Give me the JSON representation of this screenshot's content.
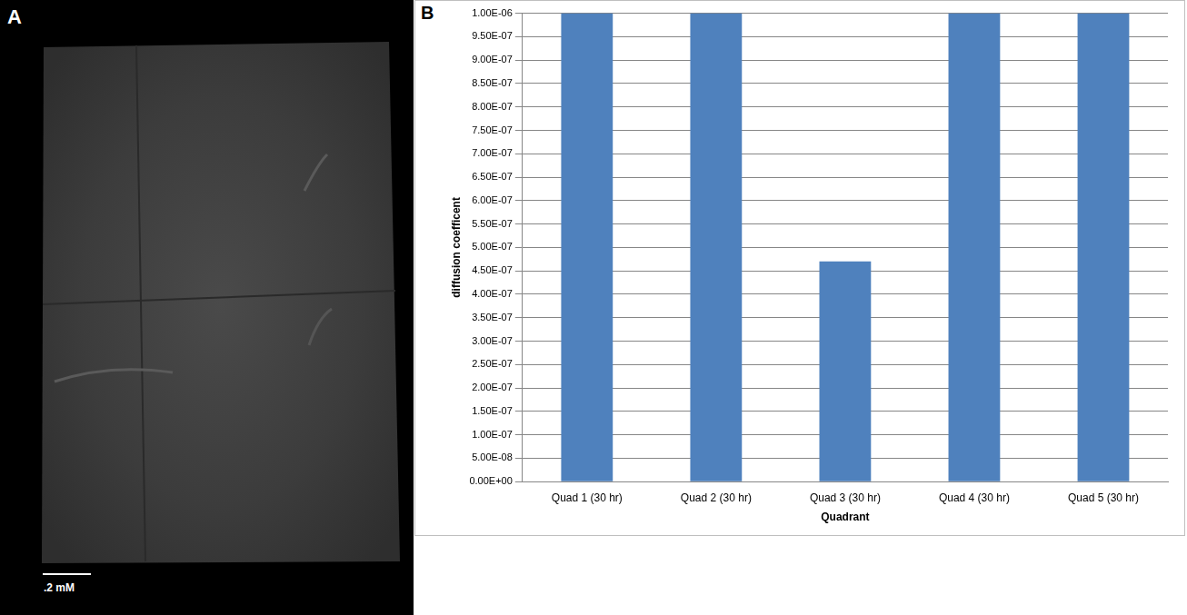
{
  "image_panel": {
    "label": "A",
    "scale_bar_label": ".2 mM"
  },
  "chart_panel_label": "B",
  "chart_data": {
    "type": "bar",
    "x_label": "Quadrant",
    "y_label": "diffusion coefficent",
    "categories": [
      "Quad 1 (30 hr)",
      "Quad 2 (30 hr)",
      "Quad 3 (30 hr)",
      "Quad 4 (30 hr)",
      "Quad 5 (30 hr)"
    ],
    "values": [
      1e-06,
      1e-06,
      4.7e-07,
      1e-06,
      1e-06
    ],
    "color": "#4f81bd",
    "ylim": [
      0,
      1e-06
    ],
    "yticks": [
      {
        "value": 0,
        "label": "0.00E+00"
      },
      {
        "value": 5e-08,
        "label": "5.00E-08"
      },
      {
        "value": 1e-07,
        "label": "1.00E-07"
      },
      {
        "value": 1.5e-07,
        "label": "1.50E-07"
      },
      {
        "value": 2e-07,
        "label": "2.00E-07"
      },
      {
        "value": 2.5e-07,
        "label": "2.50E-07"
      },
      {
        "value": 3e-07,
        "label": "3.00E-07"
      },
      {
        "value": 3.5e-07,
        "label": "3.50E-07"
      },
      {
        "value": 4e-07,
        "label": "4.00E-07"
      },
      {
        "value": 4.5e-07,
        "label": "4.50E-07"
      },
      {
        "value": 5e-07,
        "label": "5.00E-07"
      },
      {
        "value": 5.5e-07,
        "label": "5.50E-07"
      },
      {
        "value": 6e-07,
        "label": "6.00E-07"
      },
      {
        "value": 6.5e-07,
        "label": "6.50E-07"
      },
      {
        "value": 7e-07,
        "label": "7.00E-07"
      },
      {
        "value": 7.5e-07,
        "label": "7.50E-07"
      },
      {
        "value": 8e-07,
        "label": "8.00E-07"
      },
      {
        "value": 8.5e-07,
        "label": "8.50E-07"
      },
      {
        "value": 9e-07,
        "label": "9.00E-07"
      },
      {
        "value": 9.5e-07,
        "label": "9.50E-07"
      },
      {
        "value": 1e-06,
        "label": "1.00E-06"
      }
    ],
    "grid": true
  }
}
